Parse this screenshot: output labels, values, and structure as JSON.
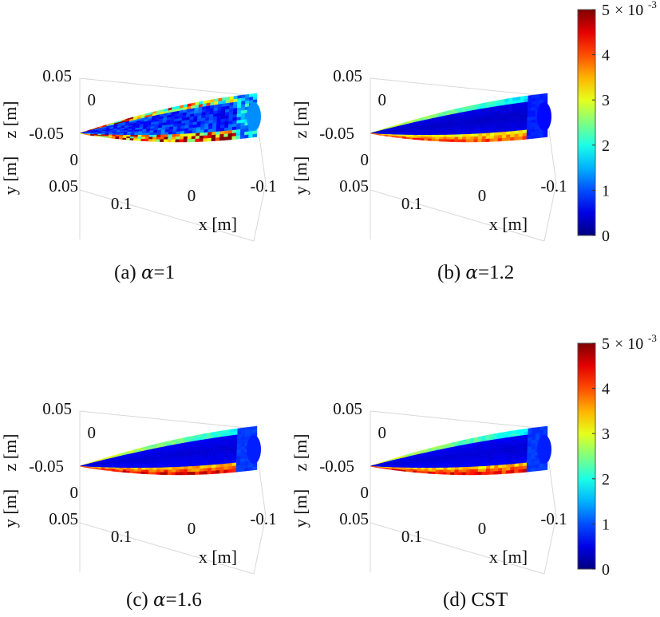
{
  "chart_data": [
    {
      "type": "heatmap",
      "caption_label": "(a)",
      "caption_symbol": "α",
      "caption_value": "=1",
      "xlabel": "x [m]",
      "ylabel": "y [m]",
      "zlabel": "z [m]",
      "x_ticks": [
        "0.1",
        "0",
        "-0.1"
      ],
      "y_ticks": [
        "-0.05",
        "0",
        "0.05"
      ],
      "z_ticks": [
        "0.05",
        "0",
        "-0.05"
      ],
      "color_range": [
        0,
        0.005
      ],
      "top_surface_level": 0.0012,
      "bottom_edge_level": 0.0045,
      "leading_edge_level": 0.0042,
      "noise": "high"
    },
    {
      "type": "heatmap",
      "caption_label": "(b)",
      "caption_symbol": "α",
      "caption_value": "=1.2",
      "xlabel": "x [m]",
      "ylabel": "y [m]",
      "zlabel": "z [m]",
      "x_ticks": [
        "0.1",
        "0",
        "-0.1"
      ],
      "y_ticks": [
        "-0.05",
        "0",
        "0.05"
      ],
      "z_ticks": [
        "0.05",
        "0",
        "-0.05"
      ],
      "color_range": [
        0,
        0.005
      ],
      "top_surface_level": 0.0006,
      "bottom_edge_level": 0.0042,
      "leading_edge_level": 0.003,
      "noise": "low"
    },
    {
      "type": "heatmap",
      "caption_label": "(c)",
      "caption_symbol": "α",
      "caption_value": "=1.6",
      "xlabel": "x [m]",
      "ylabel": "y [m]",
      "zlabel": "z [m]",
      "x_ticks": [
        "0.1",
        "0",
        "-0.1"
      ],
      "y_ticks": [
        "-0.05",
        "0",
        "0.05"
      ],
      "z_ticks": [
        "0.05",
        "0",
        "-0.05"
      ],
      "color_range": [
        0,
        0.005
      ],
      "top_surface_level": 0.0007,
      "bottom_edge_level": 0.0046,
      "leading_edge_level": 0.0032,
      "noise": "low"
    },
    {
      "type": "heatmap",
      "caption_label": "(d)",
      "caption_symbol": "",
      "caption_value": "CST",
      "xlabel": "x [m]",
      "ylabel": "y [m]",
      "zlabel": "z [m]",
      "x_ticks": [
        "0.1",
        "0",
        "-0.1"
      ],
      "y_ticks": [
        "-0.05",
        "0",
        "0.05"
      ],
      "z_ticks": [
        "0.05",
        "0",
        "-0.05"
      ],
      "color_range": [
        0,
        0.005
      ],
      "top_surface_level": 0.0007,
      "bottom_edge_level": 0.0045,
      "leading_edge_level": 0.0031,
      "noise": "low"
    }
  ],
  "colorbars": [
    {
      "ticks": [
        "0",
        "1",
        "2",
        "3",
        "4",
        "5"
      ],
      "exponent_base": "× 10",
      "exponent": "-3",
      "colormap": "jet"
    },
    {
      "ticks": [
        "0",
        "1",
        "2",
        "3",
        "4",
        "5"
      ],
      "exponent_base": "× 10",
      "exponent": "-3",
      "colormap": "jet"
    }
  ]
}
